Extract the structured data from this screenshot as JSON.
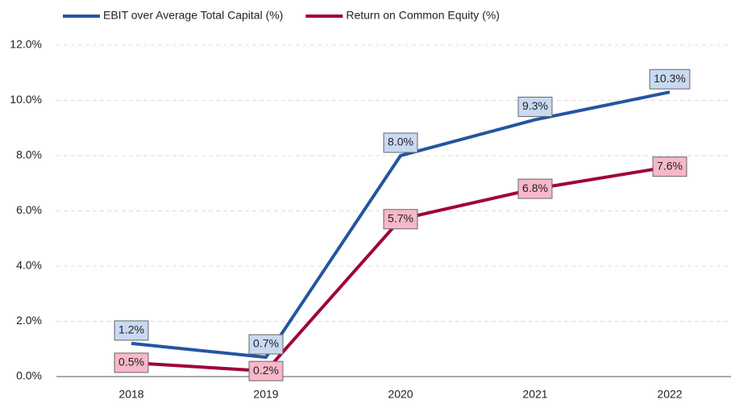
{
  "chart_data": {
    "type": "line",
    "categories": [
      "2018",
      "2019",
      "2020",
      "2021",
      "2022"
    ],
    "series": [
      {
        "name": "EBIT over Average Total Capital (%)",
        "color": "#2456a0",
        "label_fill": "#c9d9f2",
        "values": [
          1.2,
          0.7,
          8.0,
          9.3,
          10.3
        ],
        "value_labels": [
          "1.2%",
          "0.7%",
          "8.0%",
          "9.3%",
          "10.3%"
        ]
      },
      {
        "name": "Return on Common Equity (%)",
        "color": "#a0003c",
        "label_fill": "#f7b8c9",
        "values": [
          0.5,
          0.2,
          5.7,
          6.8,
          7.6
        ],
        "value_labels": [
          "0.5%",
          "0.2%",
          "5.7%",
          "6.8%",
          "7.6%"
        ]
      }
    ],
    "ylim": [
      0,
      12
    ],
    "yticks": [
      {
        "value": 0,
        "label": "0.0%"
      },
      {
        "value": 2,
        "label": "2.0%"
      },
      {
        "value": 4,
        "label": "4.0%"
      },
      {
        "value": 6,
        "label": "6.0%"
      },
      {
        "value": 8,
        "label": "8.0%"
      },
      {
        "value": 10,
        "label": "10.0%"
      },
      {
        "value": 12,
        "label": "12.0%"
      }
    ],
    "grid": true,
    "legend": "top"
  }
}
